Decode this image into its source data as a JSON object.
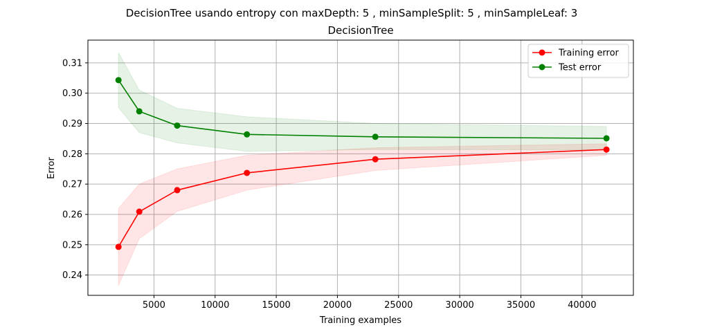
{
  "chart_data": {
    "type": "line",
    "suptitle": "DecisionTree usando entropy con maxDepth: 5 , minSampleSplit: 5 , minSampleLeaf: 3",
    "title": "DecisionTree",
    "xlabel": "Training examples",
    "ylabel": "Error",
    "xlim": [
      -400,
      44200
    ],
    "ylim": [
      0.2333,
      0.3175
    ],
    "x_ticks": [
      5000,
      10000,
      15000,
      20000,
      25000,
      30000,
      35000,
      40000
    ],
    "x_tick_labels": [
      "5000",
      "10000",
      "15000",
      "20000",
      "25000",
      "30000",
      "35000",
      "40000"
    ],
    "y_ticks": [
      0.24,
      0.25,
      0.26,
      0.27,
      0.28,
      0.29,
      0.3,
      0.31
    ],
    "y_tick_labels": [
      "0.24",
      "0.25",
      "0.26",
      "0.27",
      "0.28",
      "0.29",
      "0.30",
      "0.31"
    ],
    "grid": true,
    "legend_position": "top-right",
    "x": [
      2100,
      3800,
      6900,
      12600,
      23100,
      42000
    ],
    "series": [
      {
        "name": "Training error",
        "color": "#ff0000",
        "values": [
          0.2493,
          0.2609,
          0.268,
          0.2737,
          0.2782,
          0.2814
        ],
        "band_lower": [
          0.2366,
          0.252,
          0.261,
          0.268,
          0.2745,
          0.2795
        ],
        "band_upper": [
          0.262,
          0.27,
          0.275,
          0.2795,
          0.282,
          0.2833
        ]
      },
      {
        "name": "Test error",
        "color": "#008000",
        "values": [
          0.3043,
          0.294,
          0.2893,
          0.2864,
          0.2856,
          0.2851
        ],
        "band_lower": [
          0.2952,
          0.287,
          0.2836,
          0.2808,
          0.2814,
          0.2813
        ],
        "band_upper": [
          0.3134,
          0.301,
          0.295,
          0.2922,
          0.29,
          0.289
        ]
      }
    ]
  }
}
